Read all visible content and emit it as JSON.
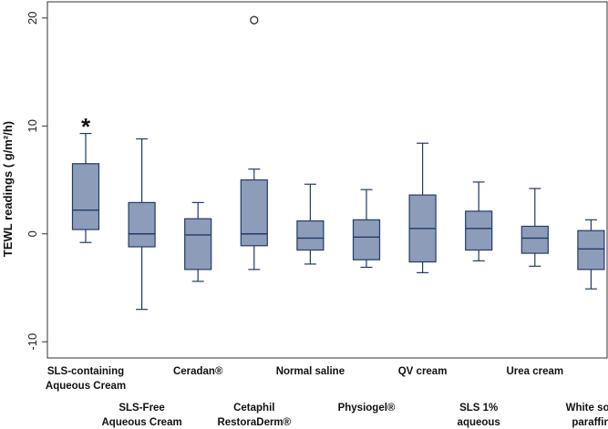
{
  "chart_data": {
    "type": "box",
    "ylabel": "TEWL readings ( g/m²/h)",
    "ylim": [
      -11.5,
      21.5
    ],
    "yticks": [
      -10,
      0,
      10,
      20
    ],
    "ytick_labels": [
      "-10",
      "0",
      "10",
      "20"
    ],
    "categories": [
      [
        "SLS-containing",
        "Aqueous Cream"
      ],
      [
        "SLS-Free",
        "Aqueous Cream"
      ],
      [
        "Ceradan®"
      ],
      [
        "Cetaphil",
        "RestoraDerm®"
      ],
      [
        "Normal saline"
      ],
      [
        "Physiogel®"
      ],
      [
        "QV cream"
      ],
      [
        "SLS 1%",
        "aqueous"
      ],
      [
        "Urea cream"
      ],
      [
        "White soft",
        "paraffin"
      ]
    ],
    "boxes": [
      {
        "whisker_low": -0.8,
        "q1": 0.4,
        "median": 2.2,
        "q3": 6.5,
        "whisker_high": 9.3
      },
      {
        "whisker_low": -7.0,
        "q1": -1.2,
        "median": 0.0,
        "q3": 2.9,
        "whisker_high": 8.8
      },
      {
        "whisker_low": -4.4,
        "q1": -3.3,
        "median": -0.1,
        "q3": 1.4,
        "whisker_high": 2.9
      },
      {
        "whisker_low": -3.3,
        "q1": -1.1,
        "median": 0.0,
        "q3": 5.0,
        "whisker_high": 6.0
      },
      {
        "whisker_low": -2.8,
        "q1": -1.5,
        "median": -0.4,
        "q3": 1.2,
        "whisker_high": 4.6
      },
      {
        "whisker_low": -3.1,
        "q1": -2.4,
        "median": -0.3,
        "q3": 1.3,
        "whisker_high": 4.1
      },
      {
        "whisker_low": -3.6,
        "q1": -2.6,
        "median": 0.5,
        "q3": 3.6,
        "whisker_high": 8.4
      },
      {
        "whisker_low": -2.5,
        "q1": -1.5,
        "median": 0.5,
        "q3": 2.1,
        "whisker_high": 4.8
      },
      {
        "whisker_low": -3.0,
        "q1": -1.8,
        "median": -0.4,
        "q3": 0.7,
        "whisker_high": 4.2
      },
      {
        "whisker_low": -5.1,
        "q1": -3.3,
        "median": -1.4,
        "q3": 0.3,
        "whisker_high": 1.3
      }
    ],
    "outliers": [
      {
        "category_index": 3,
        "value": 19.8
      }
    ],
    "annotations": [
      {
        "text": "*",
        "category_index": 0,
        "value": 10.7
      }
    ],
    "colors": {
      "box_fill": "#8d9cb8",
      "box_stroke": "#1f3b6b",
      "axis": "#333333"
    }
  }
}
